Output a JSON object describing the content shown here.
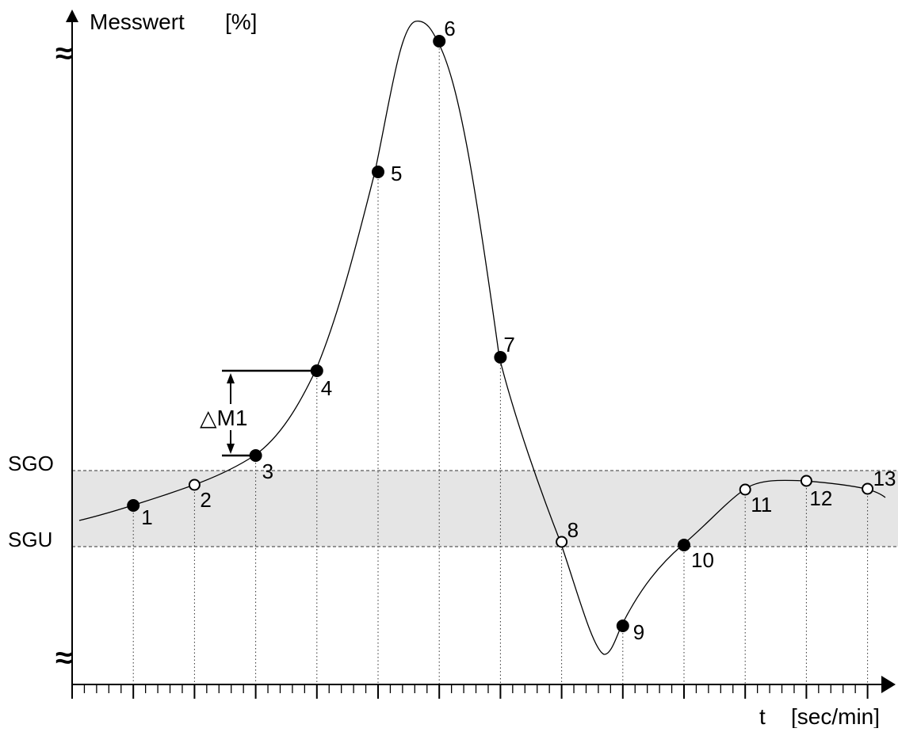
{
  "chart_data": {
    "type": "line",
    "y_axis_label": "Messwert",
    "y_axis_unit": "[%]",
    "x_axis_label": "t",
    "x_axis_unit": "[sec/min]",
    "axis_break_symbol": "≈",
    "band": {
      "upper_label": "SGO",
      "lower_label": "SGU",
      "fill_color": "#e5e5e5"
    },
    "delta_label": "△M1",
    "points": [
      {
        "label": "1",
        "t": 1,
        "filled": true
      },
      {
        "label": "2",
        "t": 2,
        "filled": false
      },
      {
        "label": "3",
        "t": 3,
        "filled": true
      },
      {
        "label": "4",
        "t": 4,
        "filled": true
      },
      {
        "label": "5",
        "t": 5,
        "filled": true
      },
      {
        "label": "6",
        "t": 6,
        "filled": true
      },
      {
        "label": "7",
        "t": 7,
        "filled": true
      },
      {
        "label": "8",
        "t": 8,
        "filled": false
      },
      {
        "label": "9",
        "t": 9,
        "filled": true
      },
      {
        "label": "10",
        "t": 10,
        "filled": true
      },
      {
        "label": "11",
        "t": 11,
        "filled": false
      },
      {
        "label": "12",
        "t": 12,
        "filled": false
      },
      {
        "label": "13",
        "t": 13,
        "filled": false
      }
    ]
  }
}
